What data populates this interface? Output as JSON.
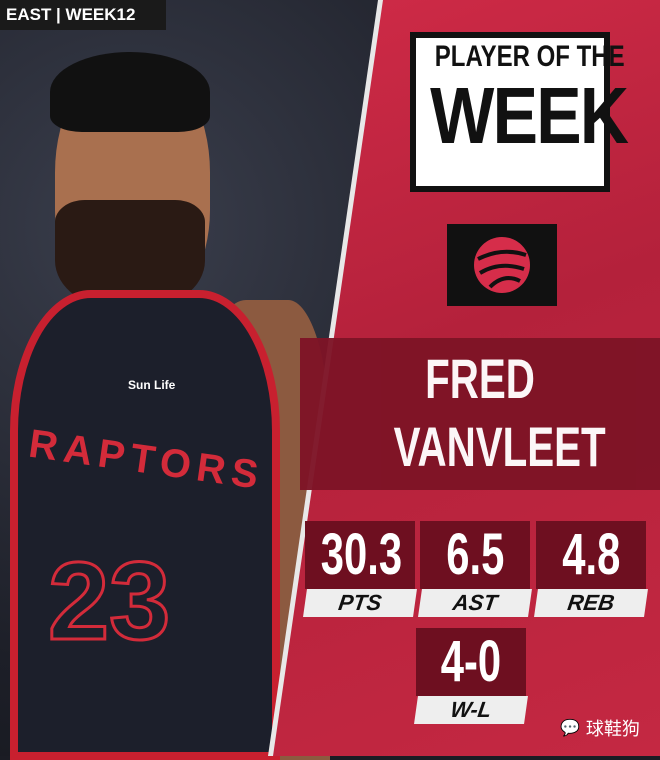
{
  "header": {
    "tag": "EAST | WEEK12"
  },
  "award": {
    "line1": "PLAYER OF THE",
    "line2": "WEEK"
  },
  "team": {
    "logo_icon": "raptors-basketball-claw-icon",
    "jersey_text": "RAPTORS",
    "jersey_number": "23",
    "sponsor": "Sun Life"
  },
  "player": {
    "first": "FRED",
    "last": "VANVLEET"
  },
  "stats": [
    {
      "value": "30.3",
      "label": "PTS"
    },
    {
      "value": "6.5",
      "label": "AST"
    },
    {
      "value": "4.8",
      "label": "REB"
    },
    {
      "value": "4-0",
      "label": "W-L"
    }
  ],
  "watermark": "球鞋狗",
  "colors": {
    "panel": "#c42842",
    "box": "#6e0f20",
    "jersey": "#1c1f2b"
  }
}
